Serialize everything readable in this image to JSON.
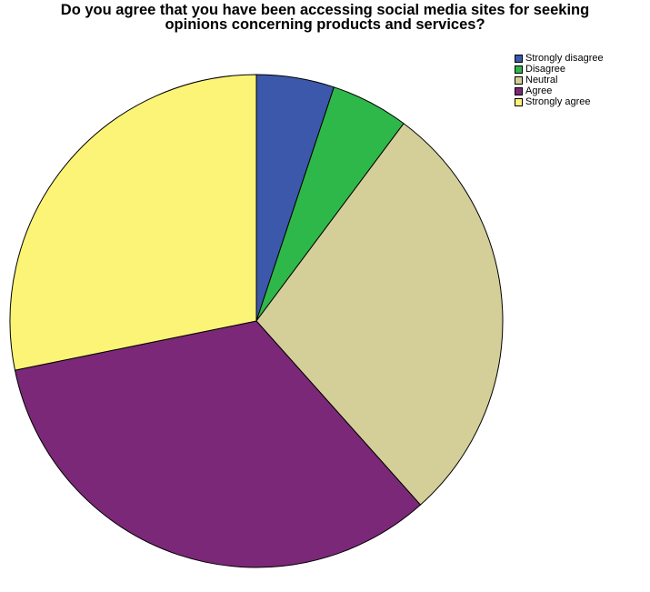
{
  "chart_data": {
    "type": "pie",
    "title_lines": [
      "Do you agree that you have been accessing social media sites for seeking",
      "opinions concerning products and services?"
    ],
    "categories": [
      "Strongly disagree",
      "Disagree",
      "Neutral",
      "Agree",
      "Strongly agree"
    ],
    "values": [
      5.1,
      5.1,
      28.2,
      33.4,
      28.2
    ],
    "colors": [
      "#3b58aa",
      "#2fb84a",
      "#d4cf99",
      "#7b2878",
      "#fbf477"
    ],
    "start_angle_deg": 0,
    "direction": "clockwise",
    "legend_position": "top-right",
    "slice_border_color": "#000000"
  }
}
